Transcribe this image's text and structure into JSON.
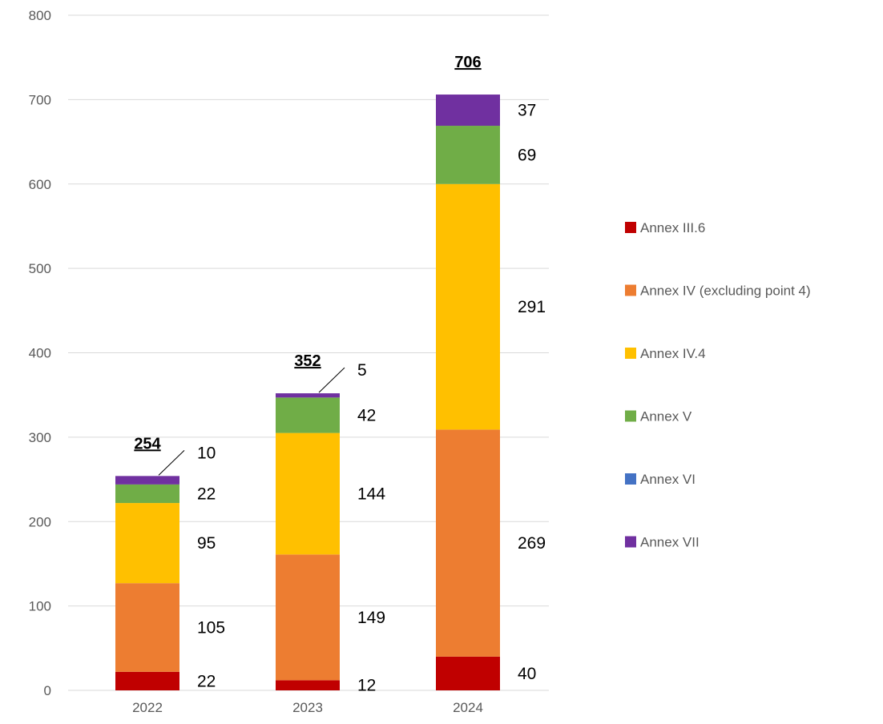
{
  "chart_data": {
    "type": "bar",
    "stacked": true,
    "categories": [
      "2022",
      "2023",
      "2024"
    ],
    "series": [
      {
        "name": "Annex III.6",
        "color": "#C00000",
        "values": [
          22,
          12,
          40
        ]
      },
      {
        "name": "Annex IV (excluding point 4)",
        "color": "#ED7D31",
        "values": [
          105,
          149,
          269
        ]
      },
      {
        "name": "Annex IV.4",
        "color": "#FFC000",
        "values": [
          95,
          144,
          291
        ]
      },
      {
        "name": "Annex V",
        "color": "#70AD47",
        "values": [
          22,
          42,
          69
        ]
      },
      {
        "name": "Annex VI",
        "color": "#4472C4",
        "values": [
          0,
          0,
          0
        ]
      },
      {
        "name": "Annex VII",
        "color": "#7030A0",
        "values": [
          10,
          5,
          37
        ]
      }
    ],
    "totals": [
      "254",
      "352",
      "706"
    ],
    "data_labels": [
      [
        "22",
        "105",
        "95",
        "22",
        null,
        "10"
      ],
      [
        "12",
        "149",
        "144",
        "42",
        null,
        "5"
      ],
      [
        "40",
        "269",
        "291",
        "69",
        null,
        "37"
      ]
    ],
    "ylim": [
      0,
      800
    ],
    "yticks": [
      "0",
      "100",
      "200",
      "300",
      "400",
      "500",
      "600",
      "700",
      "800"
    ],
    "grid": true,
    "legend_position": "right"
  }
}
